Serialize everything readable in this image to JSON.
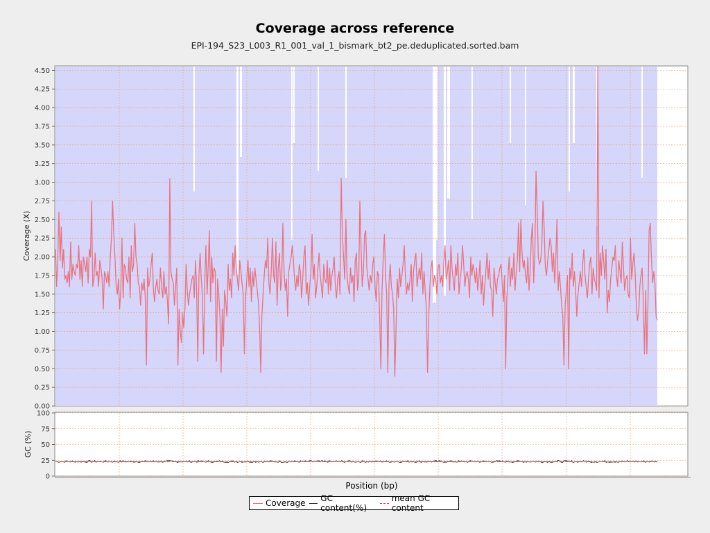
{
  "chart_data": [
    {
      "type": "line",
      "title": "Coverage across reference",
      "subtitle": "EPI-194_S23_L003_R1_001_val_1_bismark_bt2_pe.deduplicated.sorted.bam",
      "xlabel": "Position (bp)",
      "ylabel": "Coverage (X)",
      "ylim": [
        0,
        4.55
      ],
      "yticks": [
        "0.00",
        "0.25",
        "0.50",
        "0.75",
        "1.00",
        "1.25",
        "1.50",
        "1.75",
        "2.00",
        "2.25",
        "2.50",
        "2.75",
        "3.00",
        "3.25",
        "3.50",
        "3.75",
        "4.00",
        "4.25",
        "4.50"
      ],
      "grid": true,
      "series": [
        {
          "name": "Coverage",
          "color": "#e8737f",
          "values": [
            2.1,
            1.6,
            2.0,
            2.6,
            1.95,
            2.4,
            1.85,
            2.1,
            1.7,
            1.75,
            1.65,
            1.8,
            1.6,
            2.2,
            1.7,
            1.9,
            1.8,
            1.75,
            1.9,
            1.85,
            2.15,
            1.7,
            1.95,
            1.6,
            2.0,
            1.9,
            1.8,
            2.0,
            1.65,
            2.1,
            2.0,
            2.75,
            1.6,
            1.7,
            2.05,
            1.75,
            1.8,
            1.6,
            1.95,
            1.85,
            1.7,
            1.3,
            1.8,
            1.75,
            1.65,
            1.8,
            1.6,
            2.0,
            2.25,
            2.75,
            2.3,
            2.0,
            1.6,
            1.5,
            1.7,
            1.3,
            1.55,
            2.25,
            1.45,
            1.9,
            1.85,
            1.7,
            1.65,
            2.0,
            1.45,
            2.15,
            1.8,
            1.9,
            2.45,
            2.0,
            1.9,
            1.65,
            1.6,
            1.35,
            1.65,
            1.55,
            1.7,
            1.45,
            0.55,
            1.85,
            1.6,
            1.7,
            1.9,
            2.05,
            1.55,
            1.4,
            1.6,
            1.7,
            1.55,
            1.5,
            1.85,
            1.6,
            1.45,
            1.8,
            1.5,
            1.6,
            1.4,
            1.1,
            3.05,
            1.8,
            1.7,
            1.65,
            1.35,
            1.6,
            1.85,
            0.55,
            1.3,
            1.0,
            0.85,
            1.25,
            1.05,
            1.3,
            1.9,
            1.55,
            1.35,
            1.5,
            1.6,
            1.7,
            1.75,
            1.45,
            1.95,
            1.6,
            0.6,
            1.75,
            2.05,
            1.7,
            1.45,
            0.7,
            1.65,
            2.15,
            1.5,
            1.9,
            2.35,
            1.4,
            2.0,
            1.65,
            1.85,
            1.8,
            0.6,
            1.7,
            1.5,
            1.2,
            0.45,
            1.3,
            0.8,
            1.55,
            1.4,
            1.2,
            1.9,
            1.55,
            1.7,
            1.45,
            2.05,
            1.75,
            2.15,
            1.85,
            1.7,
            1.55,
            1.95,
            1.8,
            1.65,
            1.5,
            0.7,
            1.45,
            1.7,
            1.95,
            1.6,
            1.85,
            1.4,
            1.8,
            1.6,
            1.85,
            1.7,
            1.55,
            1.4,
            1.05,
            0.45,
            1.2,
            1.5,
            1.75,
            1.95,
            1.85,
            2.25,
            1.65,
            1.5,
            1.8,
            2.25,
            1.75,
            1.65,
            2.2,
            1.35,
            1.85,
            2.05,
            1.55,
            1.7,
            2.45,
            1.8,
            1.55,
            1.7,
            1.2,
            1.8,
            1.9,
            2.0,
            2.15,
            1.95,
            1.7,
            1.55,
            1.75,
            1.6,
            1.9,
            1.8,
            1.45,
            1.7,
            2.0,
            2.15,
            1.5,
            1.65,
            1.35,
            1.6,
            1.8,
            2.3,
            1.7,
            1.9,
            1.45,
            1.6,
            1.85,
            2.05,
            1.75,
            1.6,
            1.45,
            1.9,
            1.7,
            1.65,
            1.95,
            1.5,
            1.85,
            1.55,
            1.75,
            1.85,
            2.0,
            1.6,
            1.45,
            1.7,
            1.8,
            1.5,
            3.05,
            2.3,
            2.0,
            1.7,
            2.5,
            1.75,
            1.6,
            1.5,
            1.85,
            1.65,
            1.75,
            1.4,
            1.95,
            2.05,
            1.55,
            1.7,
            2.75,
            2.15,
            1.6,
            1.8,
            2.3,
            2.35,
            1.85,
            1.7,
            1.55,
            1.75,
            1.65,
            1.9,
            2.0,
            1.6,
            1.4,
            1.8,
            1.75,
            1.2,
            0.5,
            1.55,
            2.0,
            2.3,
            1.75,
            1.5,
            0.45,
            1.65,
            1.9,
            1.6,
            1.5,
            1.3,
            0.4,
            1.05,
            1.7,
            1.45,
            1.85,
            1.6,
            1.75,
            1.9,
            2.15,
            1.75,
            1.5,
            1.65,
            1.55,
            1.7,
            1.9,
            1.4,
            1.8,
            1.95,
            2.05,
            1.6,
            1.75,
            1.85,
            1.7,
            2.05,
            1.5,
            1.8,
            1.55,
            1.3,
            0.45,
            1.2,
            1.6,
            1.85,
            1.95,
            1.6,
            1.75,
            1.7,
            1.5,
            1.85,
            1.9,
            1.65,
            1.75,
            1.6,
            1.95,
            2.15,
            1.7,
            1.8,
            1.95,
            1.55,
            2.15,
            1.85,
            1.7,
            1.55,
            1.9,
            1.75,
            2.05,
            1.5,
            1.7,
            1.85,
            2.15,
            1.9,
            1.6,
            1.75,
            1.8,
            1.7,
            1.45,
            2.0,
            1.75,
            1.9,
            1.8,
            1.65,
            1.85,
            1.55,
            1.7,
            1.95,
            1.5,
            1.75,
            1.35,
            1.6,
            1.8,
            2.05,
            1.7,
            1.95,
            1.6,
            1.55,
            1.2,
            1.85,
            1.65,
            1.5,
            1.7,
            1.75,
            1.85,
            1.9,
            1.65,
            1.4,
            1.75,
            0.5,
            1.45,
            1.75,
            2.0,
            1.6,
            1.85,
            1.7,
            2.05,
            1.55,
            1.8,
            1.95,
            2.45,
            1.8,
            2.5,
            2.05,
            1.85,
            1.95,
            1.75,
            1.65,
            2.0,
            1.55,
            1.8,
            2.25,
            2.45,
            1.65,
            2.05,
            3.15,
            2.65,
            2.0,
            1.9,
            1.95,
            2.15,
            2.75,
            2.4,
            1.85,
            1.75,
            1.95,
            2.1,
            2.25,
            2.15,
            1.8,
            2.05,
            1.65,
            2.0,
            2.5,
            1.55,
            1.8,
            1.6,
            1.35,
            1.2,
            0.55,
            1.35,
            1.55,
            1.75,
            0.5,
            1.85,
            1.7,
            2.05,
            1.6,
            1.8,
            1.55,
            1.2,
            1.5,
            1.65,
            1.8,
            1.6,
            1.9,
            2.1,
            1.75,
            1.6,
            1.45,
            1.7,
            1.9,
            2.0,
            1.5,
            1.85,
            1.7,
            1.65,
            1.55,
            4.55,
            1.45,
            2.05,
            1.75,
            2.15,
            1.95,
            1.7,
            2.1,
            1.25,
            1.55,
            1.4,
            1.7,
            1.85,
            2.0,
            1.95,
            2.15,
            1.75,
            1.6,
            1.95,
            1.8,
            1.65,
            2.2,
            1.85,
            1.55,
            1.7,
            1.75,
            1.5,
            1.45,
            2.25,
            1.7,
            1.9,
            2.05,
            1.8,
            1.35,
            1.15,
            1.25,
            1.6,
            1.75,
            1.85,
            1.4,
            0.7,
            1.55,
            0.7,
            1.35,
            2.35,
            2.45,
            1.95,
            1.65,
            1.8,
            1.65,
            1.2,
            1.15
          ]
        }
      ],
      "gc_series": [
        {
          "name": "GC content(%)",
          "color": "#333333"
        },
        {
          "name": "mean GC content",
          "color": "#e04040",
          "dashed": true,
          "value": 23
        }
      ],
      "gc_ylabel": "GC (%)",
      "gc_ylim": [
        0,
        100
      ],
      "gc_yticks": [
        "0",
        "25",
        "50",
        "75",
        "100"
      ],
      "gc_mean": 23
    }
  ],
  "legend": {
    "coverage": "Coverage",
    "gc": "GC content(%)",
    "mean_gc": "mean GC content"
  },
  "colors": {
    "coverage_fill": "#d6d6fa",
    "coverage_line": "#e8737f",
    "gc_line": "#333333",
    "mean_gc": "#e04040",
    "grid": "#e4a070"
  }
}
